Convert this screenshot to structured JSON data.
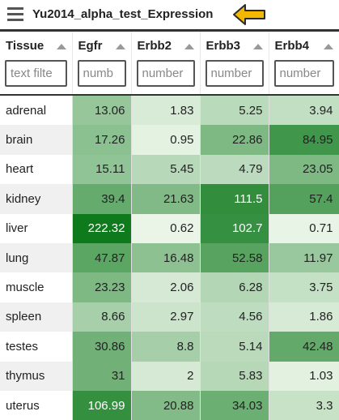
{
  "title": "Yu2014_alpha_test_Expression",
  "columns": [
    {
      "label": "Tissue",
      "placeholder": "text filte"
    },
    {
      "label": "Egfr",
      "placeholder": "numb"
    },
    {
      "label": "Erbb2",
      "placeholder": "number"
    },
    {
      "label": "Erbb3",
      "placeholder": "number"
    },
    {
      "label": "Erbb4",
      "placeholder": "number"
    }
  ],
  "rows": [
    {
      "tissue": "adrenal",
      "values": [
        "13.06",
        "1.83",
        "5.25",
        "3.94"
      ]
    },
    {
      "tissue": "brain",
      "values": [
        "17.26",
        "0.95",
        "22.86",
        "84.95"
      ]
    },
    {
      "tissue": "heart",
      "values": [
        "15.11",
        "5.45",
        "4.79",
        "23.05"
      ]
    },
    {
      "tissue": "kidney",
      "values": [
        "39.4",
        "21.63",
        "111.5",
        "57.4"
      ]
    },
    {
      "tissue": "liver",
      "values": [
        "222.32",
        "0.62",
        "102.7",
        "0.71"
      ]
    },
    {
      "tissue": "lung",
      "values": [
        "47.87",
        "16.48",
        "52.58",
        "11.97"
      ]
    },
    {
      "tissue": "muscle",
      "values": [
        "23.23",
        "2.06",
        "6.28",
        "3.75"
      ]
    },
    {
      "tissue": "spleen",
      "values": [
        "8.66",
        "2.97",
        "4.56",
        "1.86"
      ]
    },
    {
      "tissue": "testes",
      "values": [
        "30.86",
        "8.8",
        "5.14",
        "42.48"
      ]
    },
    {
      "tissue": "thymus",
      "values": [
        "31",
        "2",
        "5.83",
        "1.03"
      ]
    },
    {
      "tissue": "uterus",
      "values": [
        "106.99",
        "20.88",
        "34.03",
        "3.3"
      ]
    }
  ],
  "colors": {
    "arrow_fill": "#f5b800",
    "arrow_stroke": "#2b2b2b",
    "heat_low": "#f5fbf2",
    "heat_high": "#0e7a1c"
  }
}
